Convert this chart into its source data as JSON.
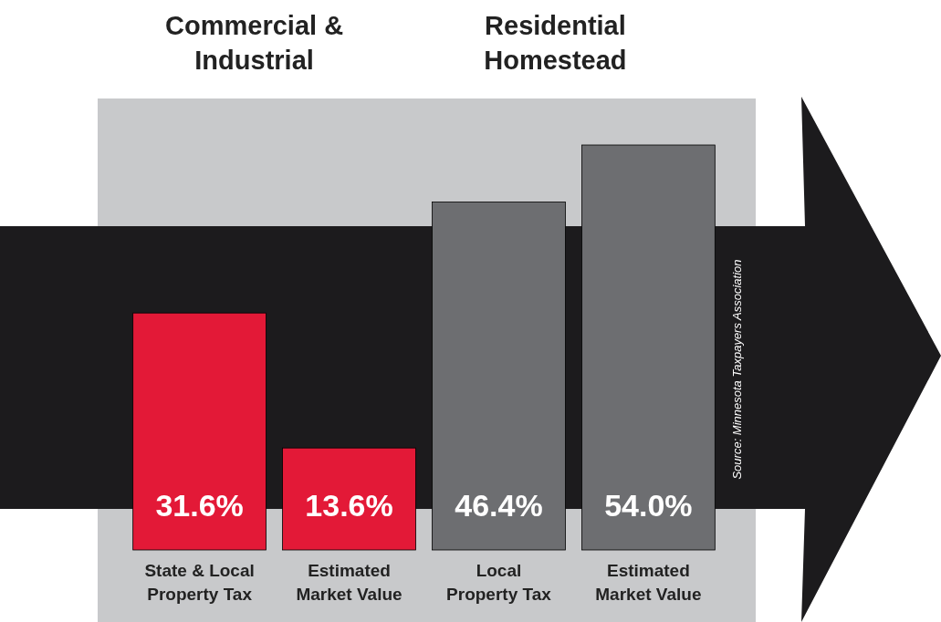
{
  "chart_data": {
    "type": "bar",
    "categories": [
      "State & Local\nProperty Tax",
      "Estimated\nMarket Value",
      "Local\nProperty Tax",
      "Estimated\nMarket Value"
    ],
    "values": [
      31.6,
      13.6,
      46.4,
      54.0
    ],
    "colors": [
      "#e31937",
      "#e31937",
      "#6d6e71",
      "#6d6e71"
    ],
    "value_labels": [
      "31.6%",
      "13.6%",
      "46.4%",
      "54.0%"
    ],
    "annotations": [
      "Commercial &\nIndustrial",
      "Residential\nHomestead",
      "Source:  Minnesota Taxpayers Association"
    ]
  }
}
